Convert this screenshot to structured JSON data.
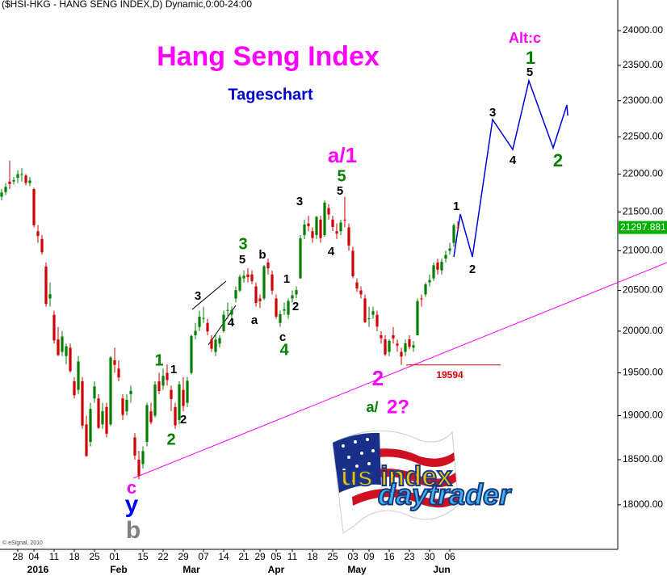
{
  "chart_data": {
    "type": "candlestick",
    "header": "($HSI-HKG - HANG SENG INDEX,D) Dynamic,0:00-24:00",
    "title": "Hang Seng Index",
    "subtitle": "Tageschart",
    "copyright": "© eSignal, 2010",
    "logo": {
      "top": "us index",
      "bottom": "daytrader"
    },
    "log_scale": true,
    "up_color": "#008000",
    "down_color": "#d00000",
    "xlim": [
      -0.4,
      152.6
    ],
    "ylim": [
      17520,
      24450
    ],
    "yticks": [
      {
        "value": 24000,
        "label": "24000.00"
      },
      {
        "value": 23500,
        "label": "23500.00"
      },
      {
        "value": 23000,
        "label": "23000.00"
      },
      {
        "value": 22500,
        "label": "22500.00"
      },
      {
        "value": 22000,
        "label": "22000.00"
      },
      {
        "value": 21500,
        "label": "21500.00"
      },
      {
        "value": 21000,
        "label": "21000.00"
      },
      {
        "value": 20500,
        "label": "20500.00"
      },
      {
        "value": 20000,
        "label": "20000.00"
      },
      {
        "value": 19500,
        "label": "19500.00"
      },
      {
        "value": 19000,
        "label": "19000.00"
      },
      {
        "value": 18500,
        "label": "18500.00"
      },
      {
        "value": 18000,
        "label": "18000.00"
      }
    ],
    "xticks": [
      {
        "value": 4,
        "label": "28"
      },
      {
        "value": 8,
        "label": "04"
      },
      {
        "value": 13,
        "label": "11"
      },
      {
        "value": 18,
        "label": "18"
      },
      {
        "value": 23,
        "label": "25"
      },
      {
        "value": 28,
        "label": "01"
      },
      {
        "value": 35,
        "label": "15"
      },
      {
        "value": 40,
        "label": "22"
      },
      {
        "value": 45,
        "label": "29"
      },
      {
        "value": 50,
        "label": "07"
      },
      {
        "value": 55,
        "label": "14"
      },
      {
        "value": 60,
        "label": "21"
      },
      {
        "value": 64,
        "label": "29"
      },
      {
        "value": 68,
        "label": "05"
      },
      {
        "value": 72,
        "label": "11"
      },
      {
        "value": 77,
        "label": "18"
      },
      {
        "value": 82,
        "label": "25"
      },
      {
        "value": 87,
        "label": "03"
      },
      {
        "value": 91,
        "label": "09"
      },
      {
        "value": 96,
        "label": "16"
      },
      {
        "value": 101,
        "label": "23"
      },
      {
        "value": 106,
        "label": "30"
      },
      {
        "value": 111,
        "label": "06"
      }
    ],
    "month_labels": [
      {
        "value": 9,
        "label": "2016"
      },
      {
        "value": 29,
        "label": "Feb"
      },
      {
        "value": 47,
        "label": "Mar"
      },
      {
        "value": 68,
        "label": "Apr"
      },
      {
        "value": 88,
        "label": "May"
      },
      {
        "value": 109,
        "label": "Jun"
      }
    ],
    "open": [
      21700,
      21760,
      21900,
      21900,
      21950,
      22000,
      21980,
      21880,
      21800,
      21250,
      21150,
      20800,
      20400,
      20200,
      19900,
      19750,
      19700,
      19800,
      19400,
      19300,
      19400,
      18900,
      18700,
      19200,
      19200,
      18900,
      19100,
      18900,
      19650,
      19550,
      19200,
      19050,
      19250,
      18750,
      18500,
      18450,
      18700,
      19050,
      19000,
      19400,
      19350,
      19500,
      19300,
      19100,
      18950,
      19300,
      19150,
      19500,
      19950,
      20050,
      20150,
      20100,
      19900,
      19750,
      19850,
      20000,
      20250,
      20200,
      20400,
      20500,
      20650,
      20700,
      20700,
      20550,
      20400,
      20400,
      20850,
      20700,
      20400,
      20100,
      20250,
      20200,
      20400,
      20450,
      20650,
      21200,
      21350,
      21250,
      21200,
      21400,
      21200,
      21550,
      21400,
      21250,
      21250,
      21400,
      21300,
      21000,
      20600,
      20500,
      20400,
      20150,
      20200,
      20200,
      19950,
      19900,
      19750,
      19950,
      19850,
      19750,
      19750,
      19900,
      19800,
      19950,
      20400,
      20450,
      20600,
      20650,
      20850,
      20750,
      20900,
      21000,
      21100,
      21300
    ],
    "high": [
      21800,
      21880,
      22180,
      21960,
      22050,
      22080,
      22000,
      21960,
      21820,
      21330,
      21200,
      20850,
      20600,
      20250,
      20050,
      20000,
      19850,
      19850,
      19450,
      19700,
      19450,
      19000,
      19150,
      19400,
      19250,
      19150,
      19150,
      19700,
      19800,
      19650,
      19250,
      19250,
      19350,
      18800,
      18600,
      18650,
      19150,
      19150,
      19400,
      19500,
      19550,
      19600,
      19350,
      19150,
      19400,
      19450,
      19450,
      19960,
      20100,
      20250,
      20300,
      20150,
      19950,
      19950,
      19950,
      20250,
      20350,
      20300,
      20550,
      20700,
      20750,
      20780,
      20750,
      20600,
      20450,
      20820,
      20900,
      20750,
      20450,
      20250,
      20350,
      20400,
      20500,
      20550,
      21200,
      21400,
      21450,
      21300,
      21450,
      21450,
      21650,
      21600,
      21450,
      21350,
      21400,
      21700,
      21350,
      21050,
      20650,
      20550,
      20450,
      20300,
      20300,
      20250,
      20000,
      19950,
      19900,
      20050,
      19900,
      19800,
      19900,
      19950,
      19880,
      20400,
      20450,
      20600,
      20700,
      20850,
      20900,
      20900,
      21000,
      21100,
      21350,
      21380
    ],
    "low": [
      21650,
      21720,
      21800,
      21860,
      21880,
      21900,
      21850,
      21840,
      21300,
      21100,
      20950,
      20300,
      20300,
      19850,
      19700,
      19700,
      19600,
      19500,
      19200,
      19250,
      18850,
      18530,
      18650,
      19150,
      18850,
      18850,
      18750,
      18880,
      19500,
      19400,
      18950,
      19000,
      19150,
      18500,
      18280,
      18400,
      18650,
      18900,
      18980,
      19250,
      19300,
      19350,
      19050,
      18850,
      18900,
      19050,
      19100,
      19480,
      19900,
      20000,
      20100,
      19950,
      19750,
      19700,
      19800,
      19980,
      20150,
      20100,
      20350,
      20480,
      20600,
      20600,
      20580,
      20300,
      20280,
      20380,
      20700,
      20450,
      20150,
      20050,
      20200,
      20150,
      20350,
      20400,
      20650,
      21150,
      21250,
      21100,
      21150,
      21100,
      21180,
      21400,
      21250,
      21150,
      21200,
      21300,
      21000,
      20650,
      20480,
      20400,
      20100,
      20050,
      20150,
      20000,
      19850,
      19700,
      19700,
      19850,
      19750,
      19594,
      19700,
      19780,
      19750,
      19950,
      20300,
      20420,
      20550,
      20620,
      20700,
      20700,
      20850,
      20950,
      21050,
      21250
    ],
    "close": [
      21755,
      21830,
      21867,
      21919,
      21999,
      22000,
      21882,
      21914,
      21327,
      21188,
      20980,
      20333,
      20453,
      19888,
      19711,
      19935,
      19817,
      19521,
      19237,
      19636,
      18886,
      18542,
      19080,
      19340,
      18860,
      19052,
      18793,
      19683,
      19595,
      19446,
      19008,
      19184,
      19289,
      18546,
      18320,
      18596,
      19122,
      18925,
      19363,
      19286,
      19464,
      19415,
      19192,
      18889,
      19364,
      19111,
      19407,
      19942,
      20004,
      20176,
      20160,
      19996,
      19788,
      19897,
      19916,
      20200,
      20258,
      20257,
      20504,
      20671,
      20684,
      20667,
      20615,
      20345,
      20366,
      20803,
      20777,
      20498,
      20177,
      20206,
      20266,
      20370,
      20440,
      20504,
      21158,
      21337,
      21316,
      21162,
      21436,
      21161,
      21622,
      21467,
      21304,
      21219,
      21362,
      21389,
      21067,
      20677,
      20525,
      20450,
      20109,
      20156,
      20243,
      20055,
      19915,
      19719,
      19883,
      19912,
      19826,
      19694,
      19852,
      19810,
      19830,
      20368,
      20397,
      20576,
      20629,
      20815,
      20760,
      20859,
      20947,
      21030,
      21328,
      21298
    ],
    "last_price": {
      "value": 21297.881,
      "label": "21297.881"
    },
    "support_level": 19594,
    "annotations": [
      {
        "text": "c",
        "color": "#ff00ff"
      },
      {
        "text": "y",
        "color": "#0000ff"
      },
      {
        "text": "b",
        "color": "#808080"
      },
      {
        "text": "1",
        "color": "#008000"
      },
      {
        "text": "2",
        "color": "#008000"
      },
      {
        "text": "1",
        "color": "#000000"
      },
      {
        "text": "2",
        "color": "#000000"
      },
      {
        "text": "3",
        "color": "#000000"
      },
      {
        "text": "4",
        "color": "#000000"
      },
      {
        "text": "3",
        "color": "#008000"
      },
      {
        "text": "5",
        "color": "#000000"
      },
      {
        "text": "b",
        "color": "#000000"
      },
      {
        "text": "a",
        "color": "#000000"
      },
      {
        "text": "1",
        "color": "#000000"
      },
      {
        "text": "2",
        "color": "#000000"
      },
      {
        "text": "c",
        "color": "#000000"
      },
      {
        "text": "4",
        "color": "#008000"
      },
      {
        "text": "3",
        "color": "#000000"
      },
      {
        "text": "4",
        "color": "#000000"
      },
      {
        "text": "5",
        "color": "#008000"
      },
      {
        "text": "5",
        "color": "#000000"
      },
      {
        "text": "a/1",
        "color": "#ff00ff"
      },
      {
        "text": "2",
        "color": "#ff00ff"
      },
      {
        "text": "a/",
        "color": "#008000"
      },
      {
        "text": "2?",
        "color": "#ff00ff"
      },
      {
        "text": "1",
        "color": "#000000"
      },
      {
        "text": "2",
        "color": "#000000"
      },
      {
        "text": "3",
        "color": "#000000"
      },
      {
        "text": "4",
        "color": "#000000"
      },
      {
        "text": "5",
        "color": "#000000"
      },
      {
        "text": "1",
        "color": "#008000"
      },
      {
        "text": "Alt:c",
        "color": "#ff00ff"
      },
      {
        "text": "2",
        "color": "#008000"
      }
    ]
  }
}
